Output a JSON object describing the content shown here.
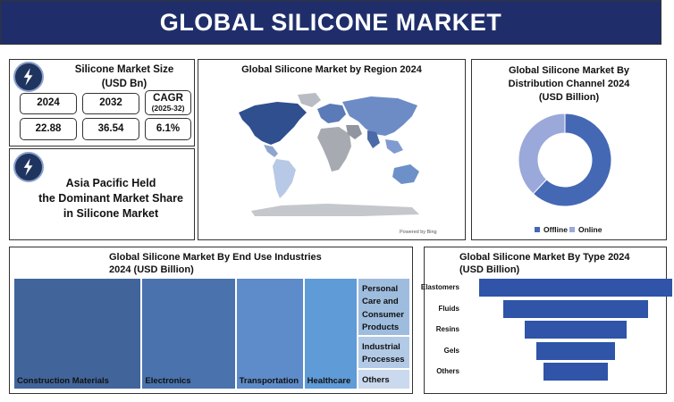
{
  "header": {
    "title": "GLOBAL SILICONE MARKET"
  },
  "size_panel": {
    "title_line1": "Silicone Market Size",
    "title_line2": "(USD Bn)",
    "year1": "2024",
    "year2": "2032",
    "cagr_label": "CAGR",
    "cagr_period": "(2025-32)",
    "value1": "22.88",
    "value2": "36.54",
    "cagr_value": "6.1%",
    "icon": "lightning-bolt-icon"
  },
  "region_note": {
    "line1": "Asia Pacific Held",
    "line2": "the Dominant Market Share",
    "line3": "in Silicone Market",
    "icon": "lightning-bolt-icon"
  },
  "map_panel": {
    "title": "Global Silicone Market by Region 2024",
    "credit": "Powered by Bing"
  },
  "chart_data": [
    {
      "type": "pie",
      "title": "Global Silicone Market By Distribution Channel 2024 (USD Billion)",
      "title_lines": [
        "Global Silicone Market By",
        "Distribution Channel 2024",
        "(USD Billion)"
      ],
      "donut": true,
      "categories": [
        "Offline",
        "Online"
      ],
      "values": [
        62,
        38
      ],
      "colors": [
        "#4568b5",
        "#9aa9d9"
      ],
      "legend": "bottom"
    },
    {
      "type": "treemap",
      "title": "Global Silicone Market By End Use Industries 2024 (USD Billion)",
      "title_lines": [
        "Global Silicone Market By End Use Industries",
        "2024 (USD Billion)"
      ],
      "categories": [
        "Construction Materials",
        "Electronics",
        "Transportation",
        "Healthcare",
        "Personal Care and Consumer Products",
        "Industrial Processes",
        "Others"
      ],
      "display_labels": [
        [
          "Construction Materials"
        ],
        [
          "Electronics"
        ],
        [
          "Transportation"
        ],
        [
          "Healthcare"
        ],
        [
          "Personal",
          "Care and",
          "Consumer",
          "Products"
        ],
        [
          "Industrial",
          "Processes"
        ],
        [
          "Others"
        ]
      ],
      "values": [
        31.5,
        23,
        16.5,
        13,
        9,
        5,
        3
      ],
      "colors": [
        "#41659a",
        "#4a72ad",
        "#5e8bc9",
        "#5f9bd6",
        "#9ebcde",
        "#b2cae6",
        "#cad9ee"
      ]
    },
    {
      "type": "bar",
      "orientation": "horizontal",
      "style": "funnel",
      "title": "Global Silicone Market By Type 2024 (USD Billion)",
      "title_lines": [
        "Global Silicone Market By Type 2024",
        "(USD Billion)"
      ],
      "categories": [
        "Elastomers",
        "Fluids",
        "Resins",
        "Gels",
        "Others"
      ],
      "values": [
        100,
        75,
        53,
        41,
        33
      ],
      "color": "#2f54a8"
    }
  ]
}
